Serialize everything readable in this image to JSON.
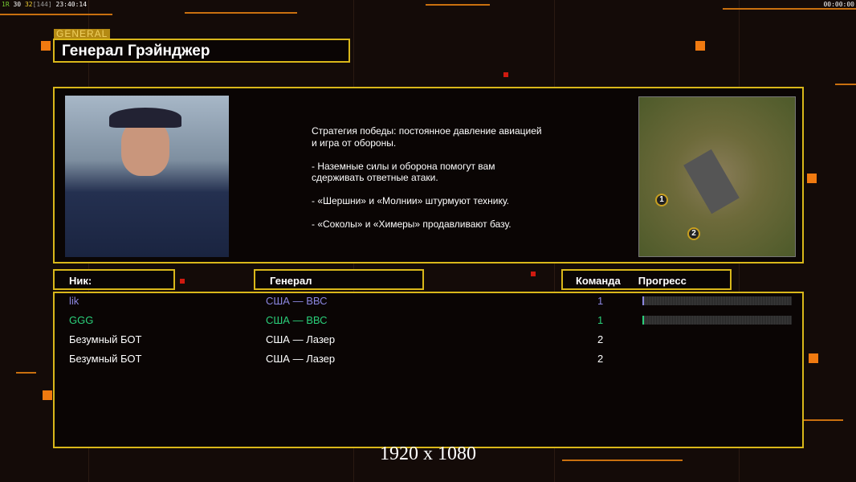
{
  "hud": {
    "a": "1R",
    "b": "30",
    "c": "32",
    "d": "[144]",
    "time": "23:40:14",
    "clock": "00:00:00"
  },
  "tag": "GENERAL",
  "title": "Генерал Грэйнджер",
  "description": "Стратегия победы: постоянное давление авиацией\n и игра от обороны.\n\n- Наземные силы и оборона помогут вам\n сдерживать ответные атаки.\n\n- «Шершни» и «Молнии» штурмуют технику.\n\n- «Соколы» и «Химеры» продавливают базу.",
  "map": {
    "markers": [
      "1",
      "2"
    ]
  },
  "headers": {
    "nick": "Ник:",
    "general": "Генерал",
    "team": "Команда",
    "progress": "Прогресс"
  },
  "players": [
    {
      "nick": "lik",
      "general": "США — ВВС",
      "team": "1",
      "color": "#8b86e0",
      "progress": 0.01
    },
    {
      "nick": "GGG",
      "general": "США — ВВС",
      "team": "1",
      "color": "#2ad07a",
      "progress": 0.01
    },
    {
      "nick": "Безумный БОТ",
      "general": "США — Лазер",
      "team": "2",
      "color": "#ffffff"
    },
    {
      "nick": "Безумный БОТ",
      "general": "США — Лазер",
      "team": "2",
      "color": "#ffffff"
    }
  ],
  "resolution": "1920 x 1080"
}
